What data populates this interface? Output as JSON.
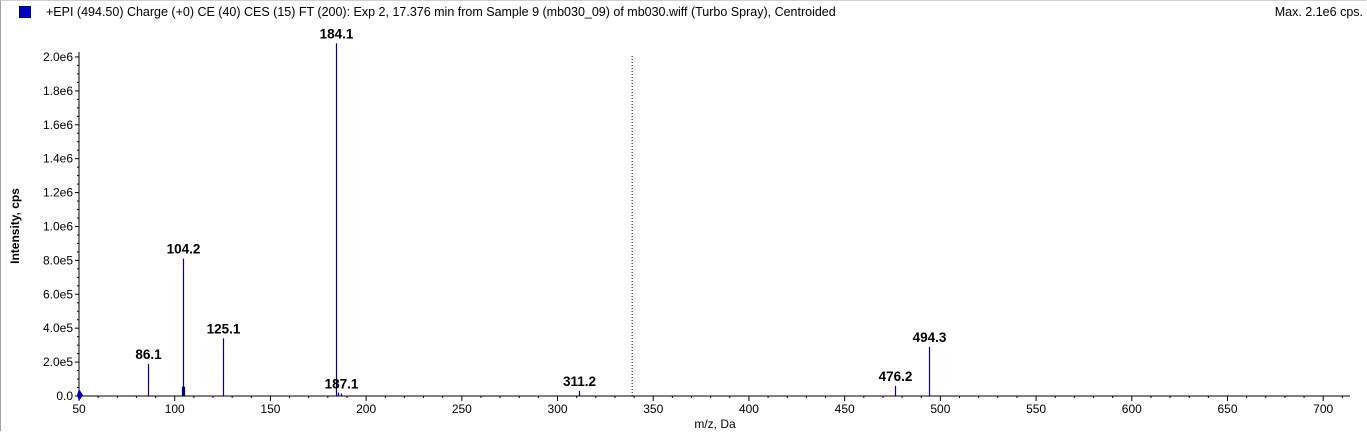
{
  "header": {
    "title": "+EPI (494.50) Charge (+0) CE (40) CES (15) FT (200): Exp 2, 17.376 min from Sample 9 (mb030_09) of mb030.wiff (Turbo Spray), Centroided",
    "max_label": "Max. 2.1e6 cps.",
    "legend_color": "#0000c0"
  },
  "chart_data": {
    "type": "bar",
    "title": "+EPI (494.50) Charge (+0) CE (40) CES (15) FT (200): Exp 2, 17.376 min from Sample 9 (mb030_09) of mb030.wiff (Turbo Spray), Centroided",
    "xlabel": "m/z, Da",
    "ylabel": "Intensity, cps",
    "xlim": [
      50,
      714
    ],
    "ylim": [
      0,
      2100000
    ],
    "x_ticks": [
      50,
      100,
      150,
      200,
      250,
      300,
      350,
      400,
      450,
      500,
      550,
      600,
      650,
      700
    ],
    "y_ticks": [
      {
        "value": 0,
        "label": "0.0"
      },
      {
        "value": 200000,
        "label": "2.0e5"
      },
      {
        "value": 400000,
        "label": "4.0e5"
      },
      {
        "value": 600000,
        "label": "6.0e5"
      },
      {
        "value": 800000,
        "label": "8.0e5"
      },
      {
        "value": 1000000,
        "label": "1.0e6"
      },
      {
        "value": 1200000,
        "label": "1.2e6"
      },
      {
        "value": 1400000,
        "label": "1.4e6"
      },
      {
        "value": 1600000,
        "label": "1.6e6"
      },
      {
        "value": 1800000,
        "label": "1.8e6"
      },
      {
        "value": 2000000,
        "label": "2.0e6"
      }
    ],
    "series_color": "#00008b",
    "peaks": [
      {
        "mz": 86.1,
        "intensity": 190000,
        "label": "86.1"
      },
      {
        "mz": 103.6,
        "intensity": 55000,
        "label": ""
      },
      {
        "mz": 104.2,
        "intensity": 810000,
        "label": "104.2"
      },
      {
        "mz": 104.8,
        "intensity": 55000,
        "label": ""
      },
      {
        "mz": 125.1,
        "intensity": 340000,
        "label": "125.1"
      },
      {
        "mz": 184.1,
        "intensity": 2080000,
        "label": "184.1"
      },
      {
        "mz": 185.3,
        "intensity": 20000,
        "label": ""
      },
      {
        "mz": 187.1,
        "intensity": 15000,
        "label": "187.1"
      },
      {
        "mz": 311.2,
        "intensity": 30000,
        "label": "311.2"
      },
      {
        "mz": 476.2,
        "intensity": 60000,
        "label": "476.2"
      },
      {
        "mz": 494.3,
        "intensity": 290000,
        "label": "494.3"
      }
    ],
    "cursor_mz": 339,
    "grid": false,
    "legend": "top-left"
  }
}
